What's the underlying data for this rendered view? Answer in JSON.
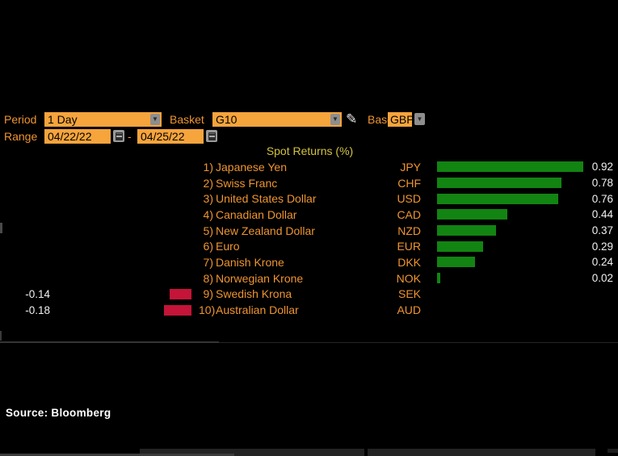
{
  "toolbar": {
    "period_label": "Period",
    "period_value": "1 Day",
    "basket_label": "Basket",
    "basket_value": "G10",
    "base_label": "Base",
    "base_value": "GBP",
    "range_label": "Range",
    "range_start": "04/22/22",
    "range_separator": "-",
    "range_end": "04/25/22"
  },
  "icons": {
    "dropdown_arrow": "▼",
    "pencil": "✎"
  },
  "chart_data": {
    "type": "bar",
    "orientation": "horizontal",
    "title": "Spot Returns (%)",
    "row_numbers": [
      "1)",
      "2)",
      "3)",
      "4)",
      "5)",
      "6)",
      "7)",
      "8)",
      "9)",
      "10)"
    ],
    "categories": [
      "Japanese Yen",
      "Swiss Franc",
      "United States Dollar",
      "Canadian Dollar",
      "New Zealand Dollar",
      "Euro",
      "Danish Krone",
      "Norwegian Krone",
      "Swedish Krona",
      "Australian Dollar"
    ],
    "tickers": [
      "JPY",
      "CHF",
      "USD",
      "CAD",
      "NZD",
      "EUR",
      "DKK",
      "NOK",
      "SEK",
      "AUD"
    ],
    "values": [
      0.92,
      0.78,
      0.76,
      0.44,
      0.37,
      0.29,
      0.24,
      0.02,
      -0.14,
      -0.18
    ],
    "positive_color": "#128412",
    "negative_color": "#C41438",
    "value_text_color": "#F0F0F0",
    "label_color": "#EE9430",
    "title_color": "#D2C240",
    "xlim": [
      -0.95,
      0.95
    ],
    "grid": false,
    "legend": false
  },
  "footer": {
    "source": "Source: Bloomberg"
  }
}
